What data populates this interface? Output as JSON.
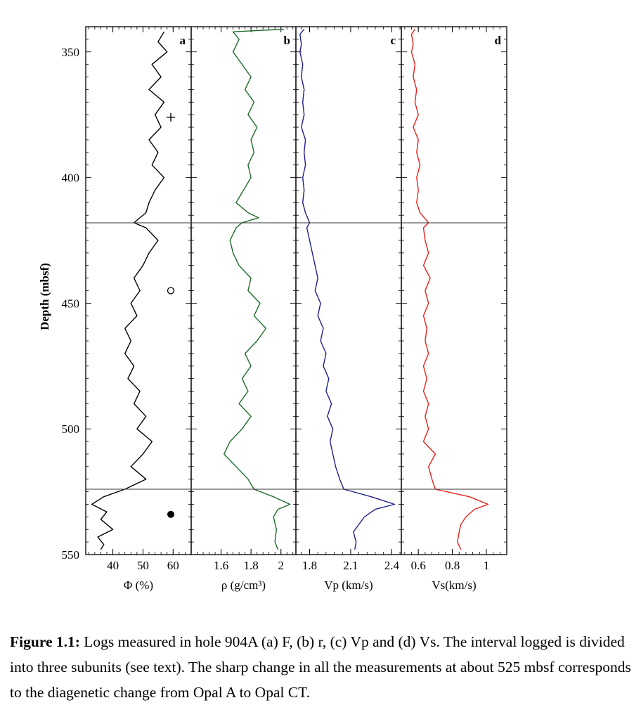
{
  "caption": {
    "label": "Figure 1.1:",
    "text": "Logs measured in hole 904A (a) F, (b) r, (c) Vp and (d) Vs. The interval logged is divided into three subunits (see text). The sharp change in all the measurements at about 525 mbsf corresponds to the diagenetic change from Opal A to Opal CT."
  },
  "chart_data": {
    "type": "line",
    "shared_y_axis": {
      "label": "Depth   (mbsf)",
      "ylim": [
        340,
        550
      ],
      "inverted": true,
      "ticks": [
        350,
        400,
        450,
        500,
        550
      ],
      "tick_labels": [
        "350",
        "400",
        "450",
        "500",
        "550"
      ]
    },
    "boundaries": [
      418,
      524
    ],
    "subunit_symbols": [
      {
        "symbol": "plus",
        "depth": 376
      },
      {
        "symbol": "open-circle",
        "depth": 445
      },
      {
        "symbol": "filled-circle",
        "depth": 534
      }
    ],
    "panels": [
      {
        "letter": "a",
        "color": "#000000",
        "xlabel": "Φ  (%)",
        "xlim": [
          31,
          66
        ],
        "ticks": [
          40,
          50,
          60
        ],
        "tick_labels": [
          "40",
          "50",
          "60"
        ],
        "series": {
          "depth": [
            342,
            346,
            350,
            355,
            360,
            365,
            370,
            375,
            380,
            385,
            390,
            395,
            400,
            405,
            410,
            414,
            418,
            420,
            425,
            430,
            435,
            440,
            445,
            450,
            455,
            460,
            465,
            470,
            475,
            480,
            485,
            490,
            495,
            500,
            505,
            510,
            515,
            520,
            524,
            527,
            530,
            533,
            536,
            540,
            543,
            546,
            548
          ],
          "values": [
            57,
            55,
            58,
            53,
            56,
            52,
            57,
            54,
            56,
            52,
            55,
            53,
            57,
            54,
            52,
            51,
            47,
            51,
            55,
            52,
            50,
            47,
            49,
            46,
            48,
            44,
            46,
            44,
            47,
            45,
            49,
            47,
            51,
            48,
            53,
            50,
            46,
            51,
            44,
            37,
            33,
            38,
            36,
            40,
            35,
            37,
            36
          ]
        }
      },
      {
        "letter": "b",
        "color": "#1e6b2a",
        "xlabel": "ρ (g/cm³)",
        "xlim": [
          1.4,
          2.1
        ],
        "ticks": [
          1.6,
          1.8,
          2.0
        ],
        "tick_labels": [
          "1.6",
          "1.8",
          "2"
        ],
        "series": {
          "depth": [
            341,
            342,
            345,
            350,
            355,
            360,
            365,
            370,
            375,
            380,
            385,
            390,
            395,
            400,
            405,
            410,
            414,
            416,
            418,
            420,
            425,
            430,
            435,
            440,
            445,
            450,
            455,
            460,
            465,
            470,
            475,
            480,
            485,
            490,
            495,
            500,
            505,
            510,
            515,
            520,
            524,
            527,
            530,
            532,
            535,
            540,
            545,
            548
          ],
          "values": [
            2.02,
            1.68,
            1.72,
            1.68,
            1.74,
            1.8,
            1.76,
            1.82,
            1.78,
            1.84,
            1.8,
            1.82,
            1.78,
            1.8,
            1.75,
            1.7,
            1.78,
            1.85,
            1.74,
            1.7,
            1.66,
            1.68,
            1.72,
            1.8,
            1.78,
            1.86,
            1.82,
            1.9,
            1.84,
            1.76,
            1.8,
            1.74,
            1.78,
            1.72,
            1.8,
            1.74,
            1.66,
            1.62,
            1.7,
            1.78,
            1.82,
            1.95,
            2.06,
            1.98,
            1.95,
            1.97,
            1.96,
            1.98
          ]
        }
      },
      {
        "letter": "c",
        "color": "#1f1f8c",
        "xlabel": "Vp (km/s)",
        "xlim": [
          1.7,
          2.47
        ],
        "ticks": [
          1.8,
          2.1,
          2.4
        ],
        "tick_labels": [
          "1.8",
          "2.1",
          "2.4"
        ],
        "series": {
          "depth": [
            341,
            343,
            347,
            350,
            355,
            360,
            365,
            370,
            375,
            380,
            385,
            390,
            395,
            400,
            405,
            410,
            414,
            418,
            420,
            425,
            430,
            435,
            440,
            445,
            450,
            455,
            460,
            465,
            470,
            475,
            480,
            485,
            490,
            495,
            500,
            505,
            510,
            515,
            520,
            524,
            527,
            530,
            532,
            535,
            538,
            541,
            545,
            548
          ],
          "values": [
            1.76,
            1.73,
            1.74,
            1.73,
            1.75,
            1.74,
            1.76,
            1.75,
            1.76,
            1.74,
            1.77,
            1.76,
            1.77,
            1.75,
            1.76,
            1.75,
            1.77,
            1.8,
            1.78,
            1.8,
            1.82,
            1.84,
            1.86,
            1.84,
            1.88,
            1.86,
            1.9,
            1.88,
            1.92,
            1.9,
            1.94,
            1.92,
            1.96,
            1.93,
            1.97,
            1.95,
            1.97,
            1.99,
            2.02,
            2.05,
            2.25,
            2.42,
            2.28,
            2.2,
            2.16,
            2.12,
            2.14,
            2.13
          ]
        }
      },
      {
        "letter": "d",
        "color": "#e8211b",
        "xlabel": "Vs(km/s)",
        "xlim": [
          0.5,
          1.12
        ],
        "ticks": [
          0.6,
          0.8,
          1.0
        ],
        "tick_labels": [
          "0.6",
          "0.8",
          "1"
        ],
        "series": {
          "depth": [
            341,
            343,
            347,
            350,
            355,
            360,
            365,
            370,
            375,
            380,
            385,
            390,
            395,
            400,
            405,
            410,
            414,
            418,
            420,
            425,
            430,
            435,
            440,
            445,
            450,
            455,
            460,
            465,
            470,
            475,
            480,
            485,
            490,
            495,
            500,
            505,
            510,
            515,
            520,
            524,
            527,
            530,
            532,
            535,
            538,
            541,
            545,
            548
          ],
          "values": [
            0.58,
            0.56,
            0.57,
            0.56,
            0.58,
            0.57,
            0.59,
            0.58,
            0.6,
            0.57,
            0.6,
            0.59,
            0.61,
            0.59,
            0.6,
            0.59,
            0.61,
            0.66,
            0.63,
            0.64,
            0.66,
            0.63,
            0.67,
            0.64,
            0.66,
            0.63,
            0.65,
            0.64,
            0.66,
            0.63,
            0.65,
            0.63,
            0.66,
            0.64,
            0.66,
            0.63,
            0.7,
            0.66,
            0.68,
            0.7,
            0.9,
            1.01,
            0.93,
            0.88,
            0.85,
            0.84,
            0.83,
            0.85
          ]
        }
      }
    ]
  }
}
